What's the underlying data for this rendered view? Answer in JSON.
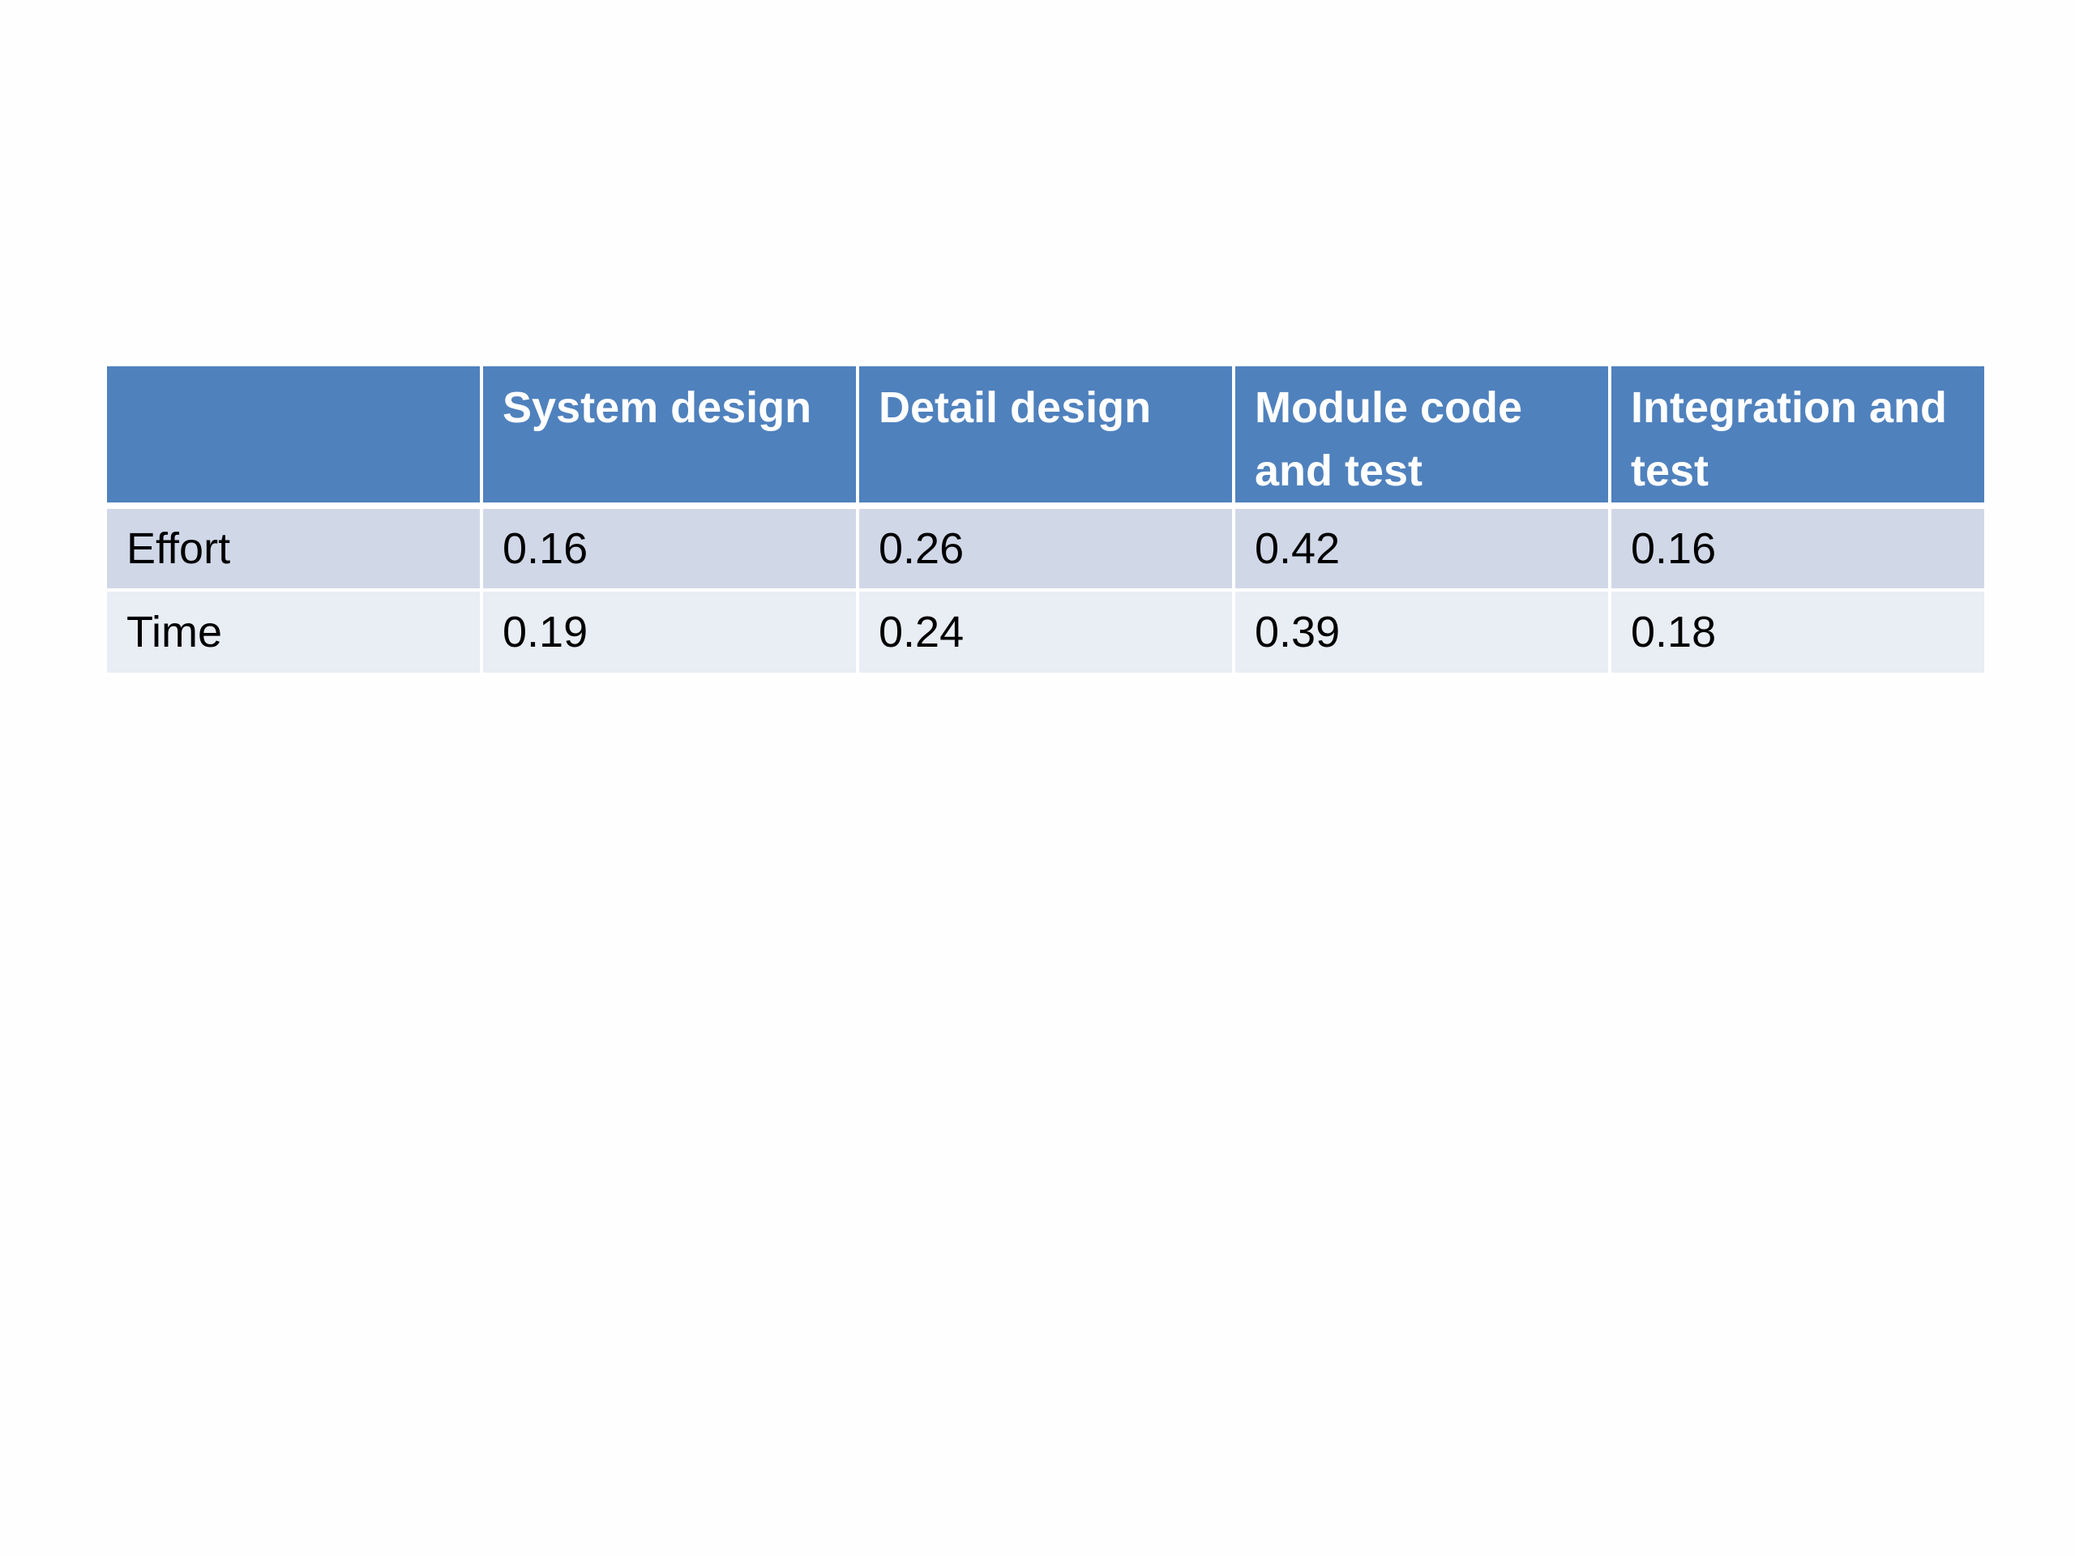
{
  "table": {
    "header": {
      "corner": "",
      "columns": [
        "System design",
        "Detail design",
        "Module code and test",
        "Integration and test"
      ]
    },
    "rows": [
      {
        "label": "Effort",
        "values": [
          "0.16",
          "0.26",
          "0.42",
          "0.16"
        ]
      },
      {
        "label": "Time",
        "values": [
          "0.19",
          "0.24",
          "0.39",
          "0.18"
        ]
      }
    ]
  },
  "colors": {
    "header_bg": "#4f81bd",
    "header_text": "#ffffff",
    "row_odd_bg": "#d0d8e8",
    "row_even_bg": "#e9edf4",
    "body_text": "#000000",
    "page_bg": "#fefefe"
  }
}
